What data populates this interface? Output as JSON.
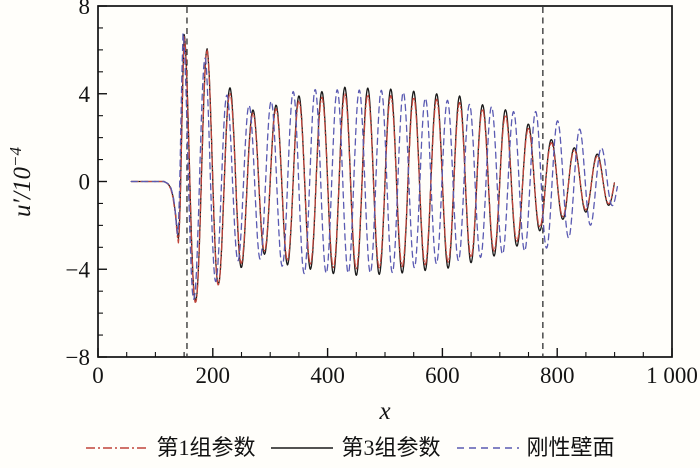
{
  "chart_data": {
    "type": "line",
    "title": "",
    "xlabel": "x",
    "ylabel_main": "u′",
    "ylabel_divisor": "/10",
    "ylabel_exponent": "−4",
    "xlim": [
      0,
      1000
    ],
    "ylim": [
      -8,
      8
    ],
    "grid": false,
    "x_major_ticks": [
      0,
      200,
      400,
      600,
      800,
      1000
    ],
    "x_tick_labels": [
      "0",
      "200",
      "400",
      "600",
      "800",
      "1 000"
    ],
    "x_minor_step": 50,
    "x_major_step": 200,
    "y_major_ticks": [
      8,
      4,
      0,
      -4,
      -8
    ],
    "y_tick_labels": [
      "8",
      "4",
      "0",
      "−4",
      "−8"
    ],
    "y_minor_step": 1,
    "y_major_step": 4,
    "vlines": {
      "positions": [
        155,
        775
      ],
      "color": "#3c3c3c",
      "dash": "6 4.5"
    },
    "series": [
      {
        "key": "group-1-params",
        "name": "第1组参数",
        "color": "#c0443a",
        "dash": "7 2.5 1.5 2.5",
        "width": 1.3,
        "flat_from": 58,
        "onset": [
          [
            115,
            0
          ],
          [
            122,
            -0.12
          ],
          [
            127,
            -0.35
          ],
          [
            131,
            -0.8
          ],
          [
            135,
            -1.55
          ],
          [
            138,
            -2.45
          ],
          [
            140,
            -2.8
          ],
          [
            141.5,
            -2.35
          ],
          [
            143,
            -1.2
          ],
          [
            144.5,
            0.4
          ],
          [
            146,
            2.4
          ],
          [
            148,
            4.9
          ],
          [
            150,
            6.6
          ]
        ],
        "carrier": {
          "ref_peak": 150,
          "period": 40,
          "start": 150,
          "end": 900
        },
        "envelope": [
          [
            150,
            6.6
          ],
          [
            170,
            5.5
          ],
          [
            190,
            6.0
          ],
          [
            210,
            4.7
          ],
          [
            228,
            4.05
          ],
          [
            248,
            3.8
          ],
          [
            266,
            3.1
          ],
          [
            302,
            3.2
          ],
          [
            330,
            3.6
          ],
          [
            430,
            4.0
          ],
          [
            520,
            3.9
          ],
          [
            590,
            3.75
          ],
          [
            630,
            3.6
          ],
          [
            670,
            3.3
          ],
          [
            708,
            3.05
          ],
          [
            748,
            2.45
          ],
          [
            786,
            1.8
          ],
          [
            828,
            1.45
          ],
          [
            870,
            1.15
          ],
          [
            900,
            0.95
          ]
        ]
      },
      {
        "key": "group-3-params",
        "name": "第3组参数",
        "color": "#1a1a1a",
        "dash": "",
        "width": 1.3,
        "flat_from": 58,
        "onset": [
          [
            115,
            0
          ],
          [
            122,
            -0.1
          ],
          [
            127,
            -0.3
          ],
          [
            131,
            -0.72
          ],
          [
            135,
            -1.45
          ],
          [
            138,
            -2.3
          ],
          [
            140,
            -2.6
          ],
          [
            141.5,
            -2.2
          ],
          [
            143,
            -1.1
          ],
          [
            144.5,
            0.5
          ],
          [
            146,
            2.5
          ],
          [
            148,
            5.0
          ],
          [
            150,
            6.7
          ]
        ],
        "carrier": {
          "ref_peak": 150,
          "period": 40,
          "start": 150,
          "end": 900
        },
        "envelope": [
          [
            150,
            6.7
          ],
          [
            170,
            5.4
          ],
          [
            190,
            6.05
          ],
          [
            210,
            4.65
          ],
          [
            228,
            4.3
          ],
          [
            248,
            4.0
          ],
          [
            266,
            3.25
          ],
          [
            302,
            3.35
          ],
          [
            330,
            3.8
          ],
          [
            430,
            4.3
          ],
          [
            520,
            4.2
          ],
          [
            590,
            4.0
          ],
          [
            630,
            3.9
          ],
          [
            670,
            3.5
          ],
          [
            708,
            3.3
          ],
          [
            748,
            2.65
          ],
          [
            786,
            1.95
          ],
          [
            828,
            1.55
          ],
          [
            870,
            1.25
          ],
          [
            900,
            1.0
          ]
        ]
      },
      {
        "key": "rigid-wall",
        "name": "刚性壁面",
        "color": "#5a5ab2",
        "dash": "6 4.5",
        "width": 1.3,
        "flat_from": 58,
        "onset": [
          [
            115,
            0
          ],
          [
            122,
            -0.1
          ],
          [
            127,
            -0.3
          ],
          [
            131,
            -0.65
          ],
          [
            134,
            -1.2
          ],
          [
            136.5,
            -2.0
          ],
          [
            138.5,
            -2.4
          ],
          [
            140,
            -2.05
          ],
          [
            141.5,
            -0.95
          ],
          [
            143,
            0.7
          ],
          [
            144.5,
            2.7
          ],
          [
            146,
            4.7
          ],
          [
            148,
            6.75
          ]
        ],
        "carrier": {
          "ref_peak": 148,
          "period": 38.4,
          "start": 148,
          "end": 905
        },
        "envelope": [
          [
            148,
            6.75
          ],
          [
            168,
            5.3
          ],
          [
            188,
            5.65
          ],
          [
            208,
            4.4
          ],
          [
            228,
            3.85
          ],
          [
            248,
            3.55
          ],
          [
            268,
            3.45
          ],
          [
            308,
            3.7
          ],
          [
            348,
            4.2
          ],
          [
            520,
            4.15
          ],
          [
            570,
            3.8
          ],
          [
            610,
            3.7
          ],
          [
            650,
            3.5
          ],
          [
            690,
            3.4
          ],
          [
            730,
            3.15
          ],
          [
            770,
            3.2
          ],
          [
            802,
            2.75
          ],
          [
            843,
            2.35
          ],
          [
            881,
            1.45
          ],
          [
            905,
            0.9
          ]
        ]
      }
    ]
  },
  "legend": {
    "items": [
      {
        "label": "第1组参数",
        "color": "#c0443a",
        "dash": "9 3 2 3",
        "width": 1.5
      },
      {
        "label": "第3组参数",
        "color": "#1a1a1a",
        "dash": "",
        "width": 1.5
      },
      {
        "label": "刚性壁面",
        "color": "#5a5ab2",
        "dash": "7 5",
        "width": 1.5
      }
    ]
  }
}
